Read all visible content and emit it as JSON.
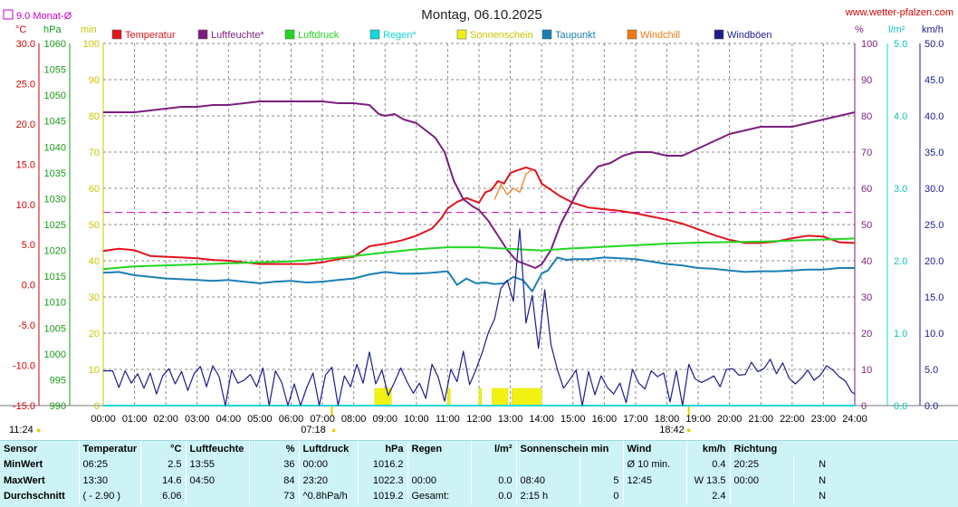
{
  "chart_data": {
    "type": "line",
    "title": "Montag, 06.10.2025",
    "source": "www.wetter-pfalzen.com",
    "monthly_avg_label": "9.0 Monat-Ø",
    "left_units": {
      "temp": "°C",
      "pressure": "hPa",
      "sun": "min"
    },
    "right_units": {
      "humidity": "%",
      "rain": "l/m²",
      "wind": "km/h"
    },
    "axes": {
      "temp": {
        "min": -15,
        "max": 30,
        "ticks": [
          "30.0",
          "25.0",
          "20.0",
          "15.0",
          "10.0",
          "5.0",
          "0.0",
          "-5.0",
          "-10.0",
          "-15.0"
        ]
      },
      "pressure": {
        "min": 990,
        "max": 1060,
        "ticks": [
          "1060",
          "1055",
          "1050",
          "1045",
          "1040",
          "1035",
          "1030",
          "1025",
          "1020",
          "1015",
          "1010",
          "1005",
          "1000",
          "995",
          "990"
        ]
      },
      "sun": {
        "min": 0,
        "max": 100,
        "ticks": [
          "100",
          "90",
          "80",
          "70",
          "60",
          "50",
          "40",
          "30",
          "20",
          "10",
          "0"
        ]
      },
      "humidity": {
        "min": 0,
        "max": 100,
        "ticks": [
          "100",
          "90",
          "80",
          "70",
          "60",
          "50",
          "40",
          "30",
          "20",
          "10",
          "0"
        ]
      },
      "rain": {
        "min": 0,
        "max": 5,
        "ticks": [
          "5.0",
          "4.0",
          "3.0",
          "2.0",
          "1.0",
          "0.0"
        ]
      },
      "wind": {
        "min": 0,
        "max": 50,
        "ticks": [
          "50.0",
          "45.0",
          "40.0",
          "35.0",
          "30.0",
          "25.0",
          "20.0",
          "15.0",
          "10.0",
          "5.0",
          "0.0"
        ]
      }
    },
    "x_ticks": [
      "00:00",
      "01:00",
      "02:00",
      "03:00",
      "04:00",
      "05:00",
      "06:00",
      "07:00",
      "08:00",
      "09:00",
      "10:00",
      "11:00",
      "12:00",
      "13:00",
      "14:00",
      "15:00",
      "16:00",
      "17:00",
      "18:00",
      "19:00",
      "20:00",
      "21:00",
      "22:00",
      "23:00",
      "24:00"
    ],
    "x_range": [
      0,
      24
    ],
    "sunrise": "07:18",
    "sunset": "18:42",
    "daylength": "11:24",
    "monthly_avg_temp": 9.0,
    "legend": [
      {
        "label": "Temperatur",
        "color": "#e0141e"
      },
      {
        "label": "Luftfeuchte*",
        "color": "#7b1e7e"
      },
      {
        "label": "Luftdruck",
        "color": "#22d622"
      },
      {
        "label": "Regen*",
        "color": "#12d8d8"
      },
      {
        "label": "Sonnenschein",
        "color": "#f2f212"
      },
      {
        "label": "Taupunkt",
        "color": "#1a7fb4"
      },
      {
        "label": "Windchill",
        "color": "#f07a12"
      },
      {
        "label": "Windböen",
        "color": "#1c1c90"
      }
    ],
    "series": [
      {
        "name": "Temperatur",
        "axis": "temp",
        "color": "#e0141e",
        "x": [
          0,
          0.5,
          1,
          1.5,
          2,
          2.5,
          3,
          3.5,
          4,
          4.5,
          5,
          5.5,
          6,
          6.5,
          7,
          7.5,
          8,
          8.5,
          9,
          9.5,
          10,
          10.5,
          10.8,
          11,
          11.3,
          11.6,
          11.8,
          12,
          12.2,
          12.4,
          12.6,
          12.8,
          13,
          13.2,
          13.5,
          13.8,
          14,
          14.3,
          14.6,
          15,
          15.5,
          16,
          16.5,
          17,
          17.5,
          18,
          18.5,
          19,
          19.5,
          20,
          20.5,
          21,
          21.5,
          22,
          22.5,
          23,
          23.5,
          24
        ],
        "y": [
          4.2,
          4.5,
          4.3,
          3.6,
          3.5,
          3.4,
          3.3,
          3.1,
          3.0,
          2.8,
          2.6,
          2.6,
          2.6,
          2.6,
          2.8,
          3.2,
          3.5,
          4.8,
          5.1,
          5.5,
          6.1,
          7.0,
          8.3,
          9.5,
          10.3,
          10.8,
          10.5,
          10.2,
          11.5,
          11.8,
          12.9,
          12.6,
          13.9,
          14.2,
          14.6,
          14.2,
          12.6,
          11.8,
          11.0,
          10.2,
          9.6,
          9.4,
          9.2,
          8.9,
          8.5,
          8.1,
          7.6,
          6.9,
          6.2,
          5.6,
          5.2,
          5.2,
          5.4,
          5.8,
          6.1,
          6.0,
          5.3,
          5.2
        ]
      },
      {
        "name": "Luftfeuchte*",
        "axis": "humidity",
        "color": "#7b1e7e",
        "x": [
          0,
          0.5,
          1,
          1.5,
          2,
          2.5,
          3,
          3.5,
          4,
          4.5,
          5,
          5.5,
          6,
          6.5,
          7,
          7.5,
          8,
          8.5,
          8.8,
          9,
          9.3,
          9.6,
          10,
          10.3,
          10.6,
          10.9,
          11.2,
          11.5,
          11.8,
          12,
          12.3,
          12.6,
          12.9,
          13.2,
          13.5,
          13.8,
          14,
          14.3,
          14.6,
          14.9,
          15.2,
          15.5,
          15.8,
          16.2,
          16.6,
          17,
          17.5,
          18,
          18.5,
          19,
          19.5,
          20,
          20.5,
          21,
          21.5,
          22,
          22.5,
          23,
          23.5,
          24
        ],
        "y": [
          81,
          81,
          81,
          81.5,
          82,
          82.5,
          82.5,
          83,
          83,
          83.5,
          84,
          84,
          84,
          84,
          84,
          83.5,
          83.5,
          83,
          80.5,
          80,
          80.5,
          79,
          78,
          76,
          74,
          70,
          62,
          57,
          55,
          54,
          51,
          47,
          43,
          40,
          39,
          38,
          39,
          43,
          50,
          55,
          60,
          63,
          66,
          67,
          69,
          70,
          70,
          69,
          69,
          71,
          73,
          75,
          76,
          77,
          77,
          77,
          78,
          79,
          80,
          81
        ]
      },
      {
        "name": "Luftdruck",
        "axis": "pressure",
        "color": "#22d622",
        "x": [
          0,
          1,
          2,
          3,
          4,
          5,
          6,
          7,
          8,
          9,
          10,
          11,
          12,
          13,
          14,
          15,
          16,
          17,
          18,
          19,
          20,
          21,
          22,
          23,
          24
        ],
        "y": [
          1016.4,
          1016.9,
          1017.1,
          1017.3,
          1017.5,
          1017.7,
          1017.9,
          1018.3,
          1018.9,
          1019.6,
          1020.2,
          1020.6,
          1020.6,
          1020.3,
          1020.0,
          1020.4,
          1020.7,
          1021.0,
          1021.3,
          1021.5,
          1021.6,
          1021.7,
          1021.9,
          1022.1,
          1022.3
        ]
      },
      {
        "name": "Regen*",
        "axis": "rain",
        "color": "#12d8d8",
        "x": [
          0,
          24
        ],
        "y": [
          0,
          0
        ]
      },
      {
        "name": "Taupunkt",
        "axis": "temp",
        "color": "#1a7fb4",
        "x": [
          0,
          0.5,
          1,
          1.5,
          2,
          2.5,
          3,
          3.5,
          4,
          4.5,
          5,
          5.5,
          6,
          6.5,
          7,
          7.5,
          8,
          8.5,
          9,
          9.5,
          10,
          10.5,
          11,
          11.3,
          11.6,
          11.9,
          12.2,
          12.5,
          12.8,
          13.1,
          13.4,
          13.7,
          14,
          14.2,
          14.5,
          14.8,
          15,
          15.5,
          16,
          16.5,
          17,
          17.5,
          18,
          18.5,
          19,
          19.5,
          20,
          20.5,
          21,
          21.5,
          22,
          22.5,
          23,
          23.5,
          24
        ],
        "y": [
          1.5,
          1.6,
          1.2,
          1.0,
          0.8,
          0.7,
          0.6,
          0.5,
          0.6,
          0.4,
          0.2,
          0.4,
          0.5,
          0.3,
          0.4,
          0.6,
          0.8,
          1.3,
          1.6,
          1.4,
          1.4,
          1.5,
          1.7,
          0.0,
          0.8,
          0.2,
          0.3,
          0.1,
          0.2,
          1.0,
          0.6,
          -0.8,
          1.4,
          1.8,
          3.4,
          3.1,
          3.2,
          3.2,
          3.4,
          3.3,
          3.2,
          2.9,
          2.6,
          2.4,
          2.1,
          2.0,
          1.8,
          1.6,
          1.7,
          1.7,
          1.8,
          1.9,
          1.9,
          2.1,
          2.1
        ]
      },
      {
        "name": "Windchill",
        "axis": "temp",
        "color": "#f07a12",
        "x": [
          12.5,
          12.7,
          12.9,
          13.1,
          13.3,
          13.5,
          13.7
        ],
        "y": [
          10.6,
          12.5,
          11.2,
          12.0,
          11.5,
          13.8,
          14.3
        ]
      },
      {
        "name": "Windböen",
        "axis": "wind",
        "color": "#1c1c90",
        "x": [
          0,
          0.3,
          0.5,
          0.7,
          0.9,
          1.1,
          1.3,
          1.5,
          1.7,
          1.9,
          2.1,
          2.3,
          2.5,
          2.7,
          2.9,
          3.1,
          3.3,
          3.5,
          3.7,
          3.9,
          4.1,
          4.3,
          4.5,
          4.7,
          4.9,
          5.1,
          5.3,
          5.5,
          5.7,
          5.9,
          6.1,
          6.3,
          6.5,
          6.7,
          6.9,
          7.1,
          7.3,
          7.5,
          7.7,
          7.9,
          8.1,
          8.3,
          8.5,
          8.7,
          8.9,
          9.1,
          9.3,
          9.5,
          9.7,
          9.9,
          10.1,
          10.3,
          10.5,
          10.7,
          10.9,
          11.1,
          11.3,
          11.5,
          11.7,
          11.9,
          12.1,
          12.3,
          12.5,
          12.7,
          12.9,
          13.1,
          13.3,
          13.5,
          13.7,
          13.9,
          14.1,
          14.3,
          14.5,
          14.7,
          14.9,
          15.1,
          15.3,
          15.5,
          15.7,
          15.9,
          16.1,
          16.3,
          16.5,
          16.7,
          16.9,
          17.1,
          17.3,
          17.5,
          17.7,
          17.9,
          18.1,
          18.3,
          18.5,
          18.7,
          18.9,
          19.1,
          19.3,
          19.5,
          19.7,
          19.9,
          20.1,
          20.3,
          20.5,
          20.7,
          20.9,
          21.1,
          21.3,
          21.5,
          21.7,
          21.9,
          22.1,
          22.3,
          22.5,
          22.7,
          22.9,
          23.1,
          23.3,
          23.5,
          23.7,
          23.9,
          24
        ],
        "y": [
          4.8,
          4.8,
          2.5,
          4.8,
          3.1,
          4.4,
          2.4,
          4.5,
          1.6,
          4.1,
          5.1,
          3.0,
          4.7,
          2.1,
          4.4,
          5.4,
          2.6,
          5.5,
          4.0,
          0.0,
          4.9,
          3.1,
          3.5,
          4.3,
          2.6,
          5.2,
          0.0,
          4.8,
          3.2,
          0.0,
          3.0,
          0.0,
          2.5,
          4.5,
          0.0,
          4.2,
          5.3,
          0.0,
          4.1,
          2.6,
          5.7,
          3.1,
          7.4,
          3.0,
          4.9,
          1.4,
          3.2,
          5.2,
          3.3,
          1.7,
          3.1,
          1.0,
          5.7,
          3.9,
          0.6,
          5.0,
          3.3,
          7.5,
          2.9,
          4.9,
          7.3,
          10.1,
          12.0,
          16.2,
          17.3,
          14.4,
          24.4,
          11.4,
          15.2,
          7.9,
          16.0,
          8.4,
          5.0,
          2.4,
          3.6,
          4.9,
          0.0,
          4.7,
          1.5,
          4.1,
          2.5,
          1.6,
          3.1,
          0.4,
          5.0,
          3.1,
          2.3,
          4.8,
          4.0,
          4.5,
          0.5,
          4.8,
          0.0,
          5.7,
          3.7,
          3.2,
          3.6,
          4.1,
          2.6,
          5.0,
          5.1,
          4.2,
          4.3,
          6.0,
          4.7,
          5.1,
          6.4,
          4.4,
          5.9,
          3.8,
          3.0,
          3.8,
          4.9,
          3.5,
          4.2,
          5.5,
          4.9,
          4.0,
          3.4,
          1.9,
          1.6
        ]
      }
    ],
    "sunshine_bars": [
      {
        "from": 8.67,
        "to": 9.2
      },
      {
        "from": 11.0,
        "to": 11.08
      },
      {
        "from": 12.0,
        "to": 12.08
      },
      {
        "from": 12.42,
        "to": 12.92
      },
      {
        "from": 13.05,
        "to": 14.0
      }
    ]
  },
  "stats": {
    "headers": {
      "sensor": "Sensor",
      "temp": "Temperatur",
      "temp_unit": "°C",
      "hum": "Luftfeuchte",
      "hum_unit": "%",
      "press": "Luftdruck",
      "press_unit": "hPa",
      "rain": "Regen",
      "rain_unit": "l/m²",
      "sun": "Sonnenschein min",
      "wind": "Wind",
      "wind_unit": "km/h",
      "dir": "Richtung"
    },
    "rows": [
      {
        "label": "MinWert",
        "temp_time": "06:25",
        "temp_val": "2.5",
        "hum_time": "13:55",
        "hum_val": "36",
        "press_time": "00:00",
        "press_val": "1016.2",
        "rain_time": "",
        "rain_val": "",
        "sun_time": "",
        "sun_val": "",
        "wind_time": "Ø 10 min.",
        "wind_val": "0.4",
        "dir_time": "20:25",
        "dir_val": "N"
      },
      {
        "label": "MaxWert",
        "temp_time": "13:30",
        "temp_val": "14.6",
        "hum_time": "04:50",
        "hum_val": "84",
        "press_time": "23:20",
        "press_val": "1022.3",
        "rain_time": "00:00",
        "rain_val": "0.0",
        "sun_time": "08:40",
        "sun_val": "5",
        "wind_time": "12:45",
        "wind_val": "W 13.5",
        "dir_time": "00:00",
        "dir_val": "N"
      },
      {
        "label": "Durchschnitt",
        "temp_time": "( - 2.90 )",
        "temp_val": "6.06",
        "hum_time": "",
        "hum_val": "73",
        "press_time": "^0.8hPa/h",
        "press_val": "1019.2",
        "rain_time": "Gesamt:",
        "rain_val": "0.0",
        "sun_time": "2:15 h",
        "sun_val": "0",
        "wind_time": "",
        "wind_val": "2.4",
        "dir_time": "",
        "dir_val": "N"
      }
    ]
  }
}
